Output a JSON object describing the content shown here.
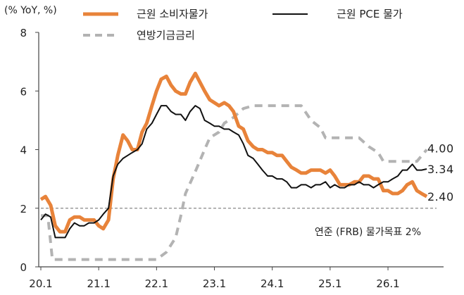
{
  "chart_data": {
    "type": "line",
    "unit_label": "(% YoY, %)",
    "ylim": [
      0,
      8
    ],
    "yticks": [
      "0",
      "2",
      "4",
      "6",
      "8"
    ],
    "xlim": [
      2020.0,
      2026.9
    ],
    "xticks": [
      {
        "label": "20.1",
        "x": 2020.0
      },
      {
        "label": "21.1",
        "x": 2021.0
      },
      {
        "label": "22.1",
        "x": 2022.0
      },
      {
        "label": "23.1",
        "x": 2023.0
      },
      {
        "label": "24.1",
        "x": 2024.0
      },
      {
        "label": "25.1",
        "x": 2025.0
      },
      {
        "label": "26.1",
        "x": 2026.0
      }
    ],
    "grid": false,
    "legend_position": "top",
    "series": [
      {
        "name": "근원 소비자물가",
        "color": "#E8833A",
        "style": "solid-thick",
        "end_label": "2.40",
        "points": [
          [
            2020.0,
            2.3
          ],
          [
            2020.08,
            2.4
          ],
          [
            2020.17,
            2.1
          ],
          [
            2020.25,
            1.4
          ],
          [
            2020.33,
            1.2
          ],
          [
            2020.42,
            1.2
          ],
          [
            2020.5,
            1.6
          ],
          [
            2020.58,
            1.7
          ],
          [
            2020.67,
            1.7
          ],
          [
            2020.75,
            1.6
          ],
          [
            2020.83,
            1.6
          ],
          [
            2020.92,
            1.6
          ],
          [
            2021.0,
            1.4
          ],
          [
            2021.08,
            1.3
          ],
          [
            2021.17,
            1.6
          ],
          [
            2021.25,
            3.0
          ],
          [
            2021.33,
            3.8
          ],
          [
            2021.42,
            4.5
          ],
          [
            2021.5,
            4.3
          ],
          [
            2021.58,
            4.0
          ],
          [
            2021.67,
            4.0
          ],
          [
            2021.75,
            4.6
          ],
          [
            2021.83,
            4.9
          ],
          [
            2021.92,
            5.5
          ],
          [
            2022.0,
            6.0
          ],
          [
            2022.08,
            6.4
          ],
          [
            2022.17,
            6.5
          ],
          [
            2022.25,
            6.2
          ],
          [
            2022.33,
            6.0
          ],
          [
            2022.42,
            5.9
          ],
          [
            2022.5,
            5.9
          ],
          [
            2022.58,
            6.3
          ],
          [
            2022.67,
            6.6
          ],
          [
            2022.75,
            6.3
          ],
          [
            2022.83,
            6.0
          ],
          [
            2022.92,
            5.7
          ],
          [
            2023.0,
            5.6
          ],
          [
            2023.08,
            5.5
          ],
          [
            2023.17,
            5.6
          ],
          [
            2023.25,
            5.5
          ],
          [
            2023.33,
            5.3
          ],
          [
            2023.42,
            4.8
          ],
          [
            2023.5,
            4.7
          ],
          [
            2023.58,
            4.3
          ],
          [
            2023.67,
            4.1
          ],
          [
            2023.75,
            4.0
          ],
          [
            2023.83,
            4.0
          ],
          [
            2023.92,
            3.9
          ],
          [
            2024.0,
            3.9
          ],
          [
            2024.08,
            3.8
          ],
          [
            2024.17,
            3.8
          ],
          [
            2024.25,
            3.6
          ],
          [
            2024.33,
            3.4
          ],
          [
            2024.42,
            3.3
          ],
          [
            2024.5,
            3.2
          ],
          [
            2024.58,
            3.2
          ],
          [
            2024.67,
            3.3
          ],
          [
            2024.75,
            3.3
          ],
          [
            2024.83,
            3.3
          ],
          [
            2024.92,
            3.2
          ],
          [
            2025.0,
            3.3
          ],
          [
            2025.08,
            3.1
          ],
          [
            2025.17,
            2.8
          ],
          [
            2025.25,
            2.8
          ],
          [
            2025.33,
            2.8
          ],
          [
            2025.42,
            2.9
          ],
          [
            2025.5,
            2.9
          ],
          [
            2025.58,
            3.1
          ],
          [
            2025.67,
            3.1
          ],
          [
            2025.75,
            3.0
          ],
          [
            2025.83,
            3.0
          ],
          [
            2025.92,
            2.6
          ],
          [
            2026.0,
            2.6
          ],
          [
            2026.08,
            2.5
          ],
          [
            2026.17,
            2.5
          ],
          [
            2026.25,
            2.6
          ],
          [
            2026.33,
            2.8
          ],
          [
            2026.42,
            2.9
          ],
          [
            2026.5,
            2.6
          ],
          [
            2026.58,
            2.5
          ],
          [
            2026.67,
            2.4
          ]
        ]
      },
      {
        "name": "근원 PCE 물가",
        "color": "#111111",
        "style": "solid-thin",
        "end_label": "3.34",
        "points": [
          [
            2020.0,
            1.6
          ],
          [
            2020.08,
            1.8
          ],
          [
            2020.17,
            1.7
          ],
          [
            2020.25,
            1.0
          ],
          [
            2020.33,
            1.0
          ],
          [
            2020.42,
            1.0
          ],
          [
            2020.5,
            1.3
          ],
          [
            2020.58,
            1.5
          ],
          [
            2020.67,
            1.4
          ],
          [
            2020.75,
            1.4
          ],
          [
            2020.83,
            1.5
          ],
          [
            2020.92,
            1.5
          ],
          [
            2021.0,
            1.6
          ],
          [
            2021.08,
            1.8
          ],
          [
            2021.17,
            2.0
          ],
          [
            2021.25,
            3.1
          ],
          [
            2021.33,
            3.5
          ],
          [
            2021.42,
            3.7
          ],
          [
            2021.5,
            3.8
          ],
          [
            2021.58,
            3.9
          ],
          [
            2021.67,
            4.0
          ],
          [
            2021.75,
            4.2
          ],
          [
            2021.83,
            4.7
          ],
          [
            2021.92,
            4.9
          ],
          [
            2022.0,
            5.2
          ],
          [
            2022.08,
            5.5
          ],
          [
            2022.17,
            5.5
          ],
          [
            2022.25,
            5.3
          ],
          [
            2022.33,
            5.2
          ],
          [
            2022.42,
            5.2
          ],
          [
            2022.5,
            5.0
          ],
          [
            2022.58,
            5.3
          ],
          [
            2022.67,
            5.5
          ],
          [
            2022.75,
            5.4
          ],
          [
            2022.83,
            5.0
          ],
          [
            2022.92,
            4.9
          ],
          [
            2023.0,
            4.8
          ],
          [
            2023.08,
            4.8
          ],
          [
            2023.17,
            4.7
          ],
          [
            2023.25,
            4.7
          ],
          [
            2023.33,
            4.6
          ],
          [
            2023.42,
            4.5
          ],
          [
            2023.5,
            4.2
          ],
          [
            2023.58,
            3.8
          ],
          [
            2023.67,
            3.7
          ],
          [
            2023.75,
            3.5
          ],
          [
            2023.83,
            3.3
          ],
          [
            2023.92,
            3.1
          ],
          [
            2024.0,
            3.1
          ],
          [
            2024.08,
            3.0
          ],
          [
            2024.17,
            3.0
          ],
          [
            2024.25,
            2.9
          ],
          [
            2024.33,
            2.7
          ],
          [
            2024.42,
            2.7
          ],
          [
            2024.5,
            2.8
          ],
          [
            2024.58,
            2.8
          ],
          [
            2024.67,
            2.7
          ],
          [
            2024.75,
            2.8
          ],
          [
            2024.83,
            2.8
          ],
          [
            2024.92,
            2.9
          ],
          [
            2025.0,
            2.7
          ],
          [
            2025.08,
            2.8
          ],
          [
            2025.17,
            2.7
          ],
          [
            2025.25,
            2.7
          ],
          [
            2025.33,
            2.8
          ],
          [
            2025.42,
            2.8
          ],
          [
            2025.5,
            2.9
          ],
          [
            2025.58,
            2.8
          ],
          [
            2025.67,
            2.8
          ],
          [
            2025.75,
            2.7
          ],
          [
            2025.83,
            2.8
          ],
          [
            2025.92,
            2.9
          ],
          [
            2026.0,
            2.9
          ],
          [
            2026.08,
            3.0
          ],
          [
            2026.17,
            3.1
          ],
          [
            2026.25,
            3.3
          ],
          [
            2026.33,
            3.3
          ],
          [
            2026.42,
            3.5
          ],
          [
            2026.5,
            3.3
          ],
          [
            2026.58,
            3.3
          ],
          [
            2026.67,
            3.34
          ]
        ]
      },
      {
        "name": "연방기금금리",
        "color": "#B3B3B3",
        "style": "dashed",
        "end_label": "4.00",
        "points": [
          [
            2020.0,
            1.75
          ],
          [
            2020.12,
            1.75
          ],
          [
            2020.2,
            0.25
          ],
          [
            2021.0,
            0.25
          ],
          [
            2022.0,
            0.25
          ],
          [
            2022.17,
            0.5
          ],
          [
            2022.33,
            1.0
          ],
          [
            2022.42,
            1.75
          ],
          [
            2022.5,
            2.5
          ],
          [
            2022.67,
            3.25
          ],
          [
            2022.83,
            4.0
          ],
          [
            2022.92,
            4.4
          ],
          [
            2023.08,
            4.6
          ],
          [
            2023.17,
            4.9
          ],
          [
            2023.33,
            5.1
          ],
          [
            2023.5,
            5.4
          ],
          [
            2023.67,
            5.5
          ],
          [
            2024.5,
            5.5
          ],
          [
            2024.67,
            5.0
          ],
          [
            2024.83,
            4.75
          ],
          [
            2024.92,
            4.4
          ],
          [
            2025.5,
            4.4
          ],
          [
            2025.67,
            4.1
          ],
          [
            2025.83,
            3.9
          ],
          [
            2025.92,
            3.6
          ],
          [
            2026.5,
            3.6
          ],
          [
            2026.67,
            4.0
          ]
        ]
      }
    ],
    "reference_line": {
      "y": 2.0,
      "label": "연준 (FRB) 물가목표 2%",
      "color": "#888888"
    }
  }
}
